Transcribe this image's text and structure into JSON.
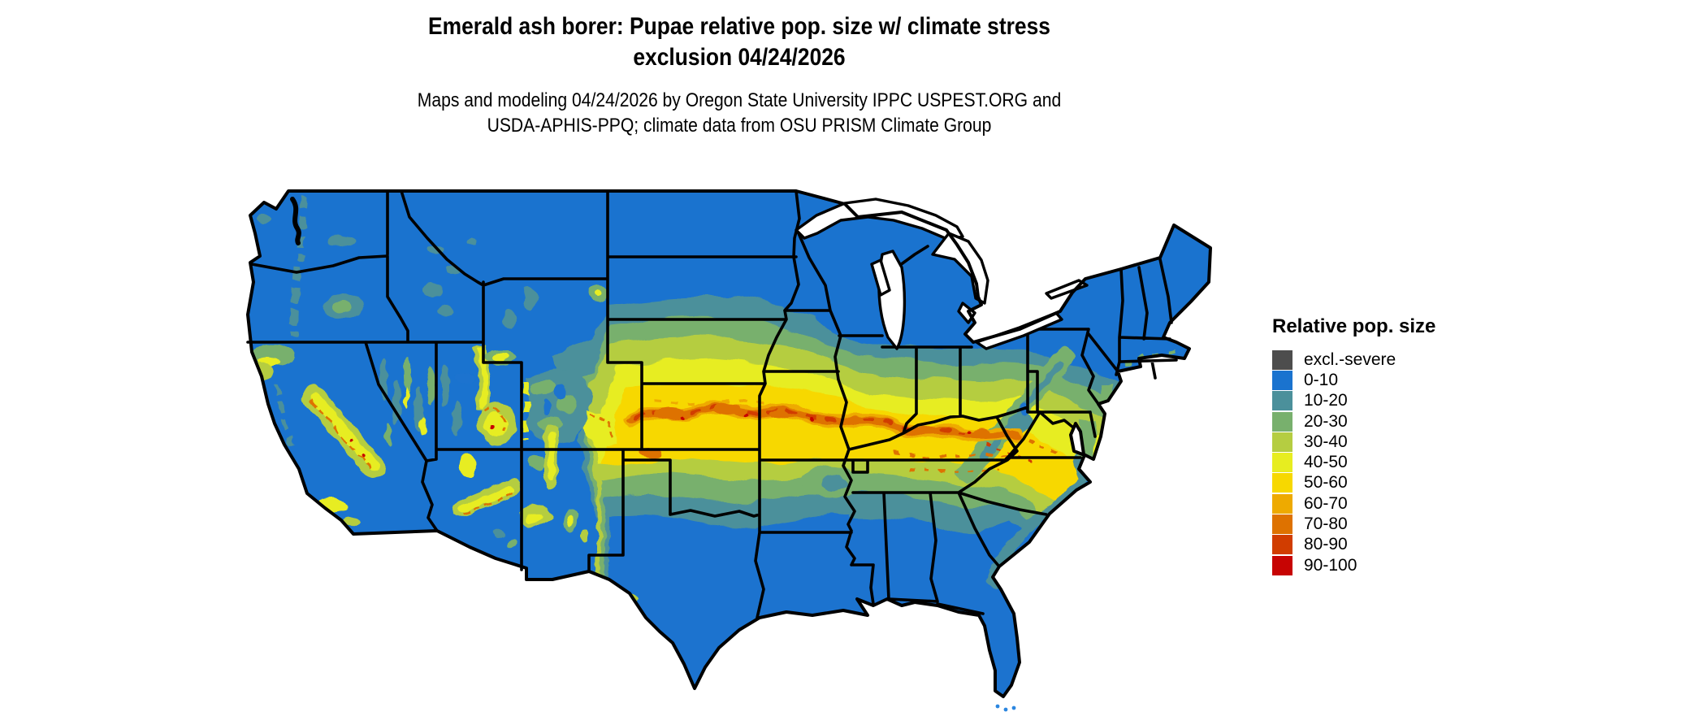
{
  "title": {
    "line1": "Emerald ash borer: Pupae relative pop. size w/ climate stress",
    "line2": "exclusion 04/24/2026"
  },
  "subtitle": {
    "line1": "Maps and modeling 04/24/2026 by Oregon State University IPPC USPEST.ORG and",
    "line2": "USDA-APHIS-PPQ; climate data from OSU PRISM Climate Group"
  },
  "legend": {
    "title": "Relative pop. size",
    "items": [
      {
        "label": "excl.-severe",
        "color": "#4d4d4d"
      },
      {
        "label": "0-10",
        "color": "#1a73cf"
      },
      {
        "label": "10-20",
        "color": "#4b909b"
      },
      {
        "label": "20-30",
        "color": "#78b06d"
      },
      {
        "label": "30-40",
        "color": "#b5cd41"
      },
      {
        "label": "40-50",
        "color": "#e7ed20"
      },
      {
        "label": "50-60",
        "color": "#f7d800"
      },
      {
        "label": "60-70",
        "color": "#eeaa00"
      },
      {
        "label": "70-80",
        "color": "#de7200"
      },
      {
        "label": "80-90",
        "color": "#d13d00"
      },
      {
        "label": "90-100",
        "color": "#c70403"
      }
    ]
  },
  "map": {
    "region": "Continental United States",
    "layer": "Pupae relative population size with climate stress exclusion",
    "date": "04/24/2026",
    "palette": {
      "excl": "#4d4d4d",
      "b0_10": "#1a73cf",
      "b10_20": "#4b909b",
      "b20_30": "#78b06d",
      "b30_40": "#b5cd41",
      "b40_50": "#e7ed20",
      "b50_60": "#f7d800",
      "b60_70": "#eeaa00",
      "b70_80": "#de7200",
      "b80_90": "#d13d00",
      "b90_100": "#c70403",
      "border": "#000000",
      "water": "#ffffff",
      "shallow": "#2b86e0"
    }
  }
}
